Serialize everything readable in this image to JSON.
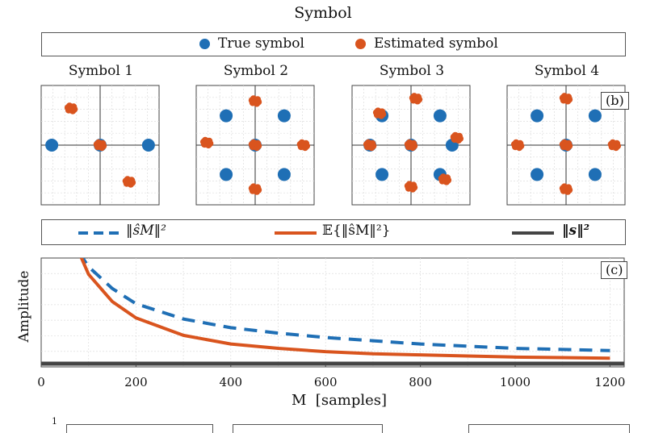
{
  "header": {
    "title": "Symbol"
  },
  "legend_top": {
    "true_label": "True symbol",
    "est_label": "Estimated symbol",
    "true_color": "#1f6fb5",
    "est_color": "#d9541e"
  },
  "legend_mid": {
    "series_a": "‖ŝM‖²",
    "series_b": "𝔼{‖ŝM‖²}",
    "series_c": "‖s‖²"
  },
  "constellations": {
    "panel_label": "(b)",
    "panels": [
      {
        "title": "Symbol 1",
        "true_points": [
          [
            -1,
            0
          ],
          [
            0,
            0
          ],
          [
            1,
            0
          ]
        ],
        "est_points": [
          [
            -0.6,
            0.75
          ],
          [
            0,
            0
          ],
          [
            0.6,
            -0.75
          ]
        ]
      },
      {
        "title": "Symbol 2",
        "true_points": [
          [
            -0.6,
            0.6
          ],
          [
            0.6,
            0.6
          ],
          [
            -0.6,
            -0.6
          ],
          [
            0.6,
            -0.6
          ],
          [
            0,
            0
          ]
        ],
        "est_points": [
          [
            0,
            0.9
          ],
          [
            -1,
            0.05
          ],
          [
            1,
            0
          ],
          [
            0,
            -0.9
          ],
          [
            0,
            0
          ]
        ]
      },
      {
        "title": "Symbol 3",
        "true_points": [
          [
            -0.6,
            0.6
          ],
          [
            0.6,
            0.6
          ],
          [
            -0.6,
            -0.6
          ],
          [
            0.6,
            -0.6
          ],
          [
            -0.85,
            0
          ],
          [
            0.85,
            0
          ],
          [
            0,
            0
          ]
        ],
        "est_points": [
          [
            -0.65,
            0.65
          ],
          [
            0.1,
            0.95
          ],
          [
            0.95,
            0.15
          ],
          [
            0.7,
            -0.7
          ],
          [
            0,
            -0.85
          ],
          [
            -0.85,
            0
          ],
          [
            0,
            0
          ]
        ]
      },
      {
        "title": "Symbol 4",
        "true_points": [
          [
            -0.6,
            0.6
          ],
          [
            0.6,
            0.6
          ],
          [
            -0.6,
            -0.6
          ],
          [
            0.6,
            -0.6
          ],
          [
            0,
            0
          ]
        ],
        "est_points": [
          [
            0,
            0.95
          ],
          [
            -1,
            0
          ],
          [
            1,
            0
          ],
          [
            0,
            -0.9
          ],
          [
            0,
            0
          ]
        ]
      }
    ]
  },
  "chart_data": {
    "type": "line",
    "panel_label": "(c)",
    "xlabel": "M  [samples]",
    "ylabel": "Amplitude",
    "xlim": [
      0,
      1230
    ],
    "ylim": [
      0,
      1
    ],
    "x_ticks": [
      0,
      200,
      400,
      600,
      800,
      1000,
      1200
    ],
    "x": [
      80,
      100,
      150,
      200,
      300,
      400,
      500,
      600,
      700,
      800,
      900,
      1000,
      1100,
      1200
    ],
    "series": [
      {
        "name": "‖ŝM‖²",
        "style": "dashed",
        "color": "#1f6fb5",
        "values": [
          1.05,
          0.92,
          0.72,
          0.58,
          0.44,
          0.36,
          0.31,
          0.27,
          0.24,
          0.21,
          0.19,
          0.17,
          0.16,
          0.15
        ]
      },
      {
        "name": "𝔼{‖ŝM‖²}",
        "style": "solid",
        "color": "#d9541e",
        "values": [
          1.05,
          0.85,
          0.6,
          0.45,
          0.29,
          0.21,
          0.17,
          0.14,
          0.12,
          0.11,
          0.1,
          0.09,
          0.085,
          0.08
        ]
      },
      {
        "name": "‖s‖²",
        "style": "solid",
        "color": "#444444",
        "values": [
          0.03,
          0.03,
          0.03,
          0.03,
          0.03,
          0.03,
          0.03,
          0.03,
          0.03,
          0.03,
          0.03,
          0.03,
          0.03,
          0.03
        ]
      }
    ]
  },
  "bottom_partial": {
    "tick": "1"
  }
}
